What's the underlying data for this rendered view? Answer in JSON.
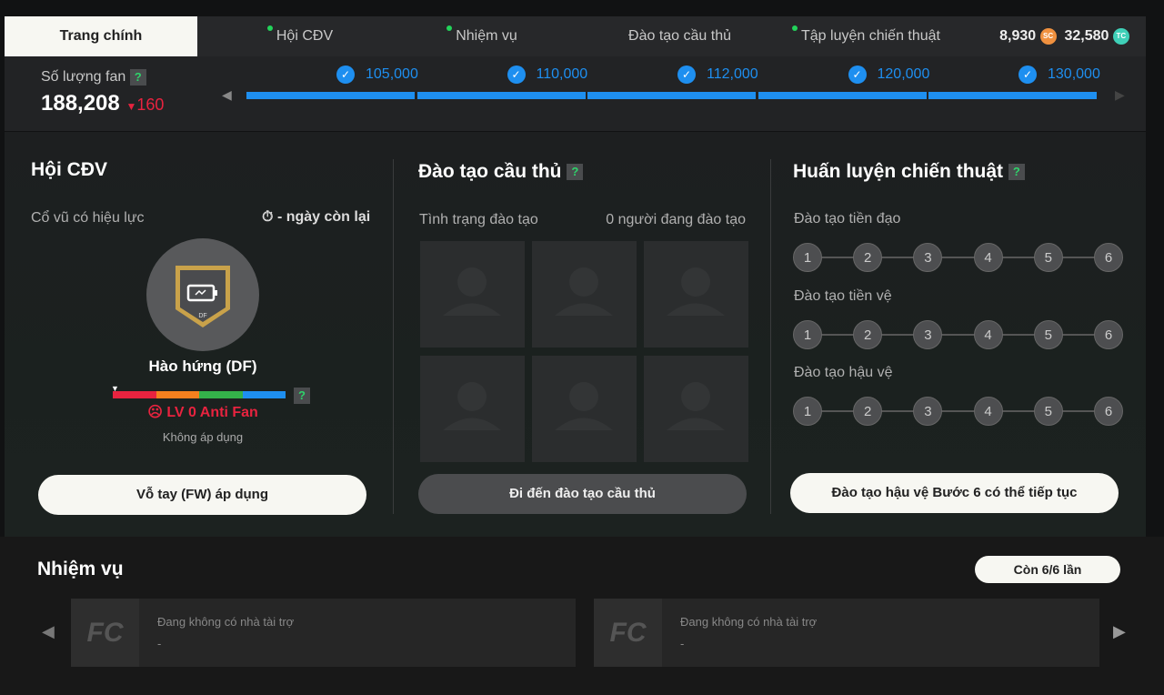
{
  "tabs": [
    {
      "label": "Trang chính",
      "active": true,
      "dot": false
    },
    {
      "label": "Hội CĐV",
      "dot": true
    },
    {
      "label": "Nhiệm vụ",
      "dot": true
    },
    {
      "label": "Đào tạo cầu thủ",
      "dot": false
    },
    {
      "label": "Tập luyện chiến thuật",
      "dot": true
    }
  ],
  "currency": {
    "sc": "8,930",
    "sc_icon": "SC",
    "tc": "32,580",
    "tc_icon": "TC"
  },
  "fans": {
    "label": "Số lượng fan",
    "help": "?",
    "count": "188,208",
    "delta": "160",
    "delta_color": "#e8233f"
  },
  "milestones": [
    "105,000",
    "110,000",
    "112,000",
    "120,000",
    "130,000"
  ],
  "club": {
    "title": "Hội CĐV",
    "effect_label": "Cổ vũ có hiệu lực",
    "days_left": "- ngày còn lại",
    "badge_pos": "DF",
    "name": "Hào hứng (DF)",
    "level": "LV 0 Anti Fan",
    "status": "Không áp dụng",
    "help": "?",
    "button": "Vỗ tay (FW) áp dụng",
    "level_bar_colors": [
      "#e8233f",
      "#f5801e",
      "#34b24a",
      "#1e8ff0"
    ]
  },
  "training": {
    "title": "Đào tạo cầu thủ",
    "help": "?",
    "status_label": "Tình trạng đào tạo",
    "count": "0 người đang đào tạo",
    "button": "Đi đến đào tạo cầu thủ"
  },
  "tactics": {
    "title": "Huấn luyện chiến thuật",
    "help": "?",
    "rows": [
      {
        "label": "Đào tạo tiền đạo"
      },
      {
        "label": "Đào tạo tiền vệ"
      },
      {
        "label": "Đào tạo hậu vệ"
      }
    ],
    "steps": [
      "1",
      "2",
      "3",
      "4",
      "5",
      "6"
    ],
    "button": "Đào tạo hậu vệ Bước 6 có thể tiếp tục"
  },
  "missions": {
    "title": "Nhiệm vụ",
    "remaining": "Còn 6/6 lần",
    "cards": [
      {
        "title": "Đang không có nhà tài trợ",
        "sub": "-"
      },
      {
        "title": "Đang không có nhà tài trợ",
        "sub": "-"
      }
    ]
  }
}
